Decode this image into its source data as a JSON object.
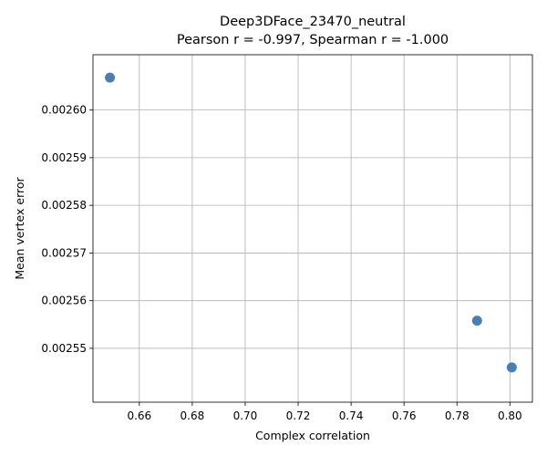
{
  "chart_data": {
    "type": "scatter",
    "title": "Deep3DFace_23470_neutral",
    "subtitle": "Pearson r = -0.997, Spearman r = -1.000",
    "xlabel": "Complex correlation",
    "ylabel": "Mean vertex error",
    "xlim": [
      0.6425,
      0.8085
    ],
    "ylim": [
      0.0025387,
      0.0026116
    ],
    "x_ticks": [
      0.66,
      0.68,
      0.7,
      0.72,
      0.74,
      0.76,
      0.78,
      0.8
    ],
    "x_tick_labels": [
      "0.66",
      "0.68",
      "0.70",
      "0.72",
      "0.74",
      "0.76",
      "0.78",
      "0.80"
    ],
    "y_ticks": [
      0.00255,
      0.00256,
      0.00257,
      0.00258,
      0.00259,
      0.0026
    ],
    "y_tick_labels": [
      "0.00255",
      "0.00256",
      "0.00257",
      "0.00258",
      "0.00259",
      "0.00260"
    ],
    "grid": true,
    "series": [
      {
        "name": "models",
        "color": "#4a7fb3",
        "points": [
          {
            "x": 0.6489,
            "y": 0.0026068
          },
          {
            "x": 0.7876,
            "y": 0.0025558
          },
          {
            "x": 0.8007,
            "y": 0.002546
          }
        ]
      }
    ]
  }
}
